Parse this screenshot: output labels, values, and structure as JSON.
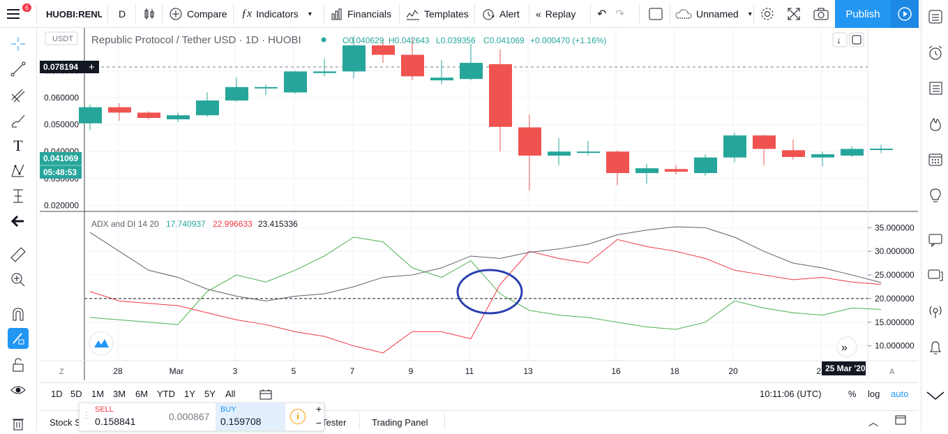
{
  "topbar": {
    "symbol": "HUOBI:RENU",
    "interval": "D",
    "compare": "Compare",
    "indicators": "Indicators",
    "financials": "Financials",
    "templates": "Templates",
    "alert": "Alert",
    "replay": "Replay",
    "layout_name": "Unnamed",
    "publish": "Publish",
    "notif_count": "6"
  },
  "legend": {
    "currency_badge": "USDT",
    "title": "Republic Protocol / Tether USD · 1D · HUOBI",
    "open": "O0.040629",
    "high": "H0.042643",
    "low": "L0.039356",
    "close": "C0.041069",
    "change": "+0.000470 (+1.16%)"
  },
  "indicator": {
    "name": "ADX and DI 14 20",
    "plus_di": "17.740937",
    "minus_di": "22.996633",
    "adx": "23.415336"
  },
  "price_axis": {
    "crosshair_price": "0.078194",
    "last_price": "0.041069",
    "countdown": "05:48:53",
    "ticks": [
      "0.070000",
      "0.060000",
      "0.050000",
      "0.040000",
      "0.030000",
      "0.020000"
    ]
  },
  "adx_axis": {
    "ticks": [
      "35.000000",
      "30.000000",
      "25.000000",
      "20.000000",
      "15.000000",
      "10.000000"
    ]
  },
  "time_axis": {
    "ticks": [
      "28",
      "Mar",
      "3",
      "5",
      "7",
      "9",
      "11",
      "13",
      "16",
      "18",
      "20",
      "23"
    ],
    "current": "25 Mar '20",
    "z_label": "Z",
    "a_label": "A"
  },
  "bottom": {
    "ranges": [
      "1D",
      "5D",
      "1M",
      "3M",
      "6M",
      "YTD",
      "1Y",
      "5Y",
      "All"
    ],
    "clock": "10:11:06 (UTC)",
    "pct": "%",
    "log": "log",
    "auto": "auto"
  },
  "tabs": {
    "stock": "Stock S",
    "tester": "Tester",
    "trading": "Trading Panel"
  },
  "trade": {
    "sell_label": "SELL",
    "sell_value": "0.158841",
    "spread": "0.000867",
    "buy_label": "BUY",
    "buy_value": "0.159708"
  },
  "chart_data": {
    "type": "candlestick",
    "candles": [
      {
        "o": 0.0505,
        "h": 0.0575,
        "l": 0.048,
        "c": 0.0565
      },
      {
        "o": 0.0565,
        "h": 0.058,
        "l": 0.0515,
        "c": 0.0545
      },
      {
        "o": 0.0545,
        "h": 0.055,
        "l": 0.052,
        "c": 0.0525
      },
      {
        "o": 0.052,
        "h": 0.0545,
        "l": 0.051,
        "c": 0.0535
      },
      {
        "o": 0.0535,
        "h": 0.062,
        "l": 0.053,
        "c": 0.059
      },
      {
        "o": 0.059,
        "h": 0.0675,
        "l": 0.0585,
        "c": 0.064
      },
      {
        "o": 0.064,
        "h": 0.065,
        "l": 0.061,
        "c": 0.064
      },
      {
        "o": 0.062,
        "h": 0.07,
        "l": 0.0615,
        "c": 0.0698
      },
      {
        "o": 0.0692,
        "h": 0.0745,
        "l": 0.068,
        "c": 0.0698
      },
      {
        "o": 0.0698,
        "h": 0.083,
        "l": 0.0672,
        "c": 0.0795
      },
      {
        "o": 0.0795,
        "h": 0.082,
        "l": 0.073,
        "c": 0.076
      },
      {
        "o": 0.076,
        "h": 0.0825,
        "l": 0.0665,
        "c": 0.068
      },
      {
        "o": 0.0665,
        "h": 0.074,
        "l": 0.065,
        "c": 0.0675
      },
      {
        "o": 0.067,
        "h": 0.08,
        "l": 0.0665,
        "c": 0.073
      },
      {
        "o": 0.0725,
        "h": 0.078,
        "l": 0.04,
        "c": 0.0492
      },
      {
        "o": 0.049,
        "h": 0.0538,
        "l": 0.0255,
        "c": 0.0385
      },
      {
        "o": 0.0385,
        "h": 0.045,
        "l": 0.035,
        "c": 0.04
      },
      {
        "o": 0.0395,
        "h": 0.044,
        "l": 0.0385,
        "c": 0.04
      },
      {
        "o": 0.04,
        "h": 0.0405,
        "l": 0.0275,
        "c": 0.032
      },
      {
        "o": 0.032,
        "h": 0.0355,
        "l": 0.028,
        "c": 0.0338
      },
      {
        "o": 0.0335,
        "h": 0.035,
        "l": 0.0315,
        "c": 0.0325
      },
      {
        "o": 0.032,
        "h": 0.039,
        "l": 0.031,
        "c": 0.0378
      },
      {
        "o": 0.0378,
        "h": 0.047,
        "l": 0.036,
        "c": 0.046
      },
      {
        "o": 0.046,
        "h": 0.0462,
        "l": 0.035,
        "c": 0.041
      },
      {
        "o": 0.0405,
        "h": 0.0445,
        "l": 0.037,
        "c": 0.038
      },
      {
        "o": 0.0378,
        "h": 0.04,
        "l": 0.0345,
        "c": 0.039
      },
      {
        "o": 0.0385,
        "h": 0.042,
        "l": 0.038,
        "c": 0.041
      },
      {
        "o": 0.0406,
        "h": 0.0426,
        "l": 0.0394,
        "c": 0.0411
      }
    ],
    "adx": [
      34.0,
      30.0,
      26.0,
      24.5,
      22.0,
      20.5,
      19.5,
      20.5,
      21.0,
      22.5,
      24.5,
      25.0,
      26.5,
      29.0,
      28.5,
      29.8,
      30.5,
      31.5,
      33.5,
      34.5,
      35.2,
      35.0,
      33.0,
      30.0,
      27.5,
      26.5,
      25.0,
      23.4
    ],
    "plus_di": [
      16.0,
      15.5,
      15.0,
      14.5,
      21.5,
      25.0,
      23.5,
      26.0,
      29.0,
      33.0,
      32.0,
      26.5,
      24.5,
      28.0,
      21.0,
      17.5,
      16.5,
      16.0,
      15.0,
      14.0,
      13.5,
      15.0,
      19.5,
      18.0,
      17.0,
      16.5,
      18.0,
      17.7
    ],
    "minus_di": [
      21.5,
      19.5,
      19.0,
      18.5,
      17.0,
      15.5,
      14.5,
      13.0,
      12.0,
      10.0,
      8.5,
      13.0,
      13.0,
      11.5,
      23.0,
      30.0,
      28.5,
      27.5,
      32.5,
      31.0,
      30.0,
      28.5,
      26.0,
      25.0,
      24.0,
      24.5,
      23.5,
      23.0
    ],
    "adx_level": 20,
    "price_range": [
      0.018,
      0.086
    ],
    "adx_range": [
      7,
      38
    ]
  }
}
